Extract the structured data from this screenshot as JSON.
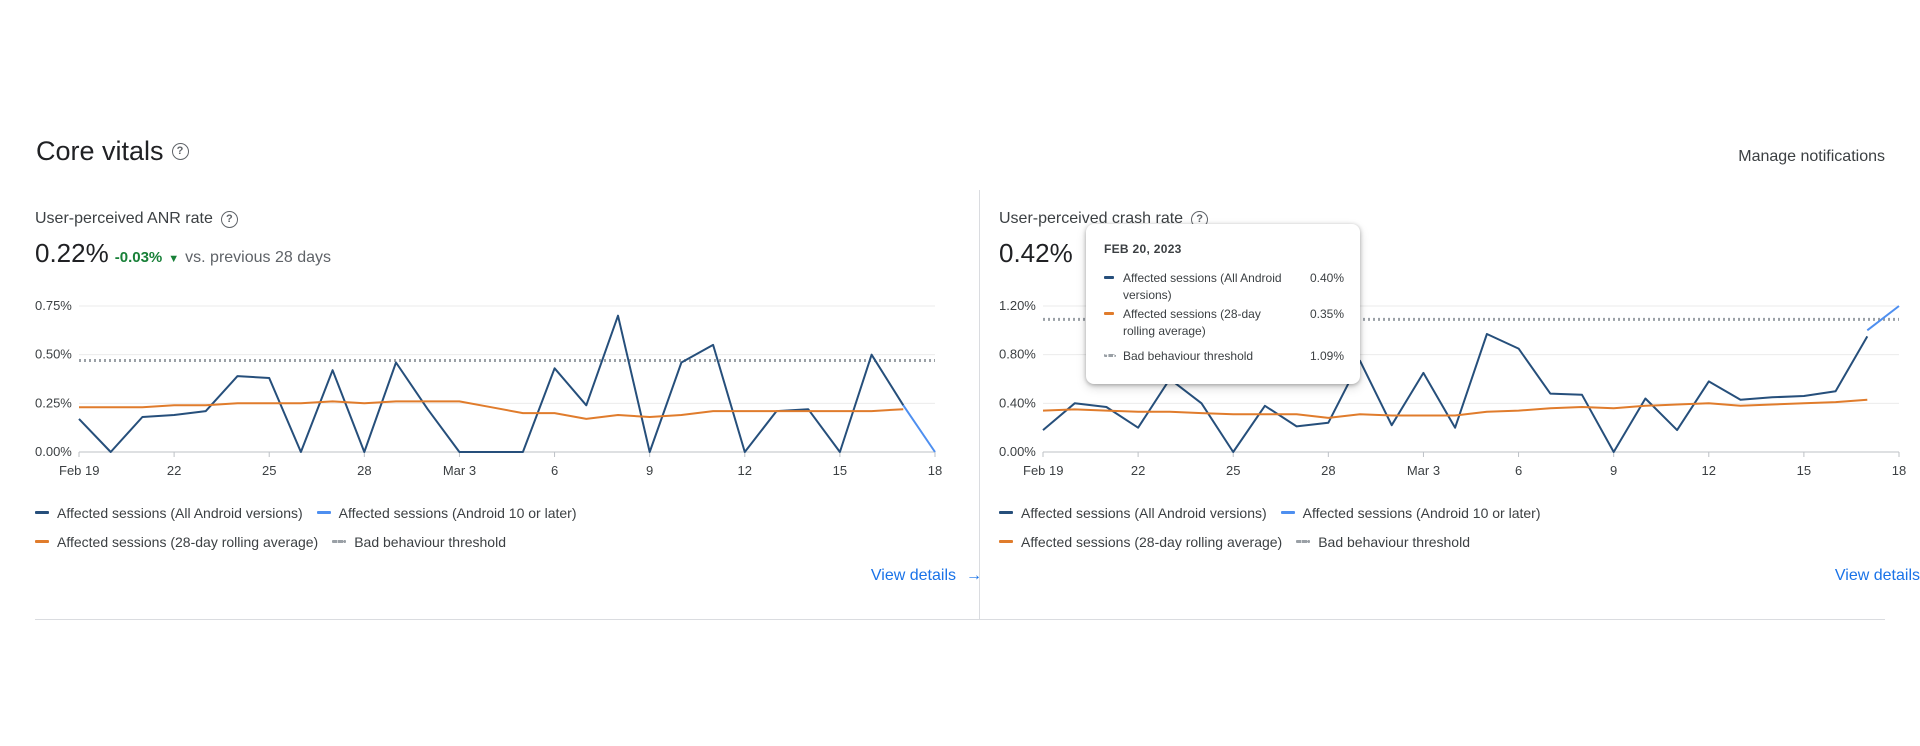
{
  "header": {
    "title": "Core vitals",
    "help_icon": "?",
    "manage": "Manage notifications"
  },
  "colors": {
    "all_android": "#264f7b",
    "android10": "#4e8ff0",
    "rolling": "#e07c2c",
    "threshold": "#9aa0a6",
    "positive_delta": "#188038",
    "link": "#1a73e8"
  },
  "panels": [
    {
      "title": "User-perceived ANR rate",
      "value": "0.22%",
      "delta": "-0.03%",
      "compare": "vs. previous 28 days",
      "view_details": "View details",
      "view_details_arrow": "→"
    },
    {
      "title": "User-perceived crash rate",
      "value": "0.42%",
      "view_details": "View details",
      "view_details_arrow": "→"
    }
  ],
  "legend": {
    "all_android": "Affected sessions (All Android versions)",
    "android10": "Affected sessions (Android 10 or later)",
    "rolling": "Affected sessions (28-day rolling average)",
    "threshold": "Bad behaviour threshold"
  },
  "tooltip": {
    "date": "FEB 20, 2023",
    "rows": [
      {
        "label": "Affected sessions (All Android versions)",
        "value": "0.40%"
      },
      {
        "label": "Affected sessions (28-day rolling average)",
        "value": "0.35%"
      },
      {
        "label": "Bad behaviour threshold",
        "value": "1.09%"
      }
    ]
  },
  "chart_data": [
    {
      "type": "line",
      "title": "User-perceived ANR rate",
      "x_tick_labels": [
        "Feb 19",
        "22",
        "25",
        "28",
        "Mar 3",
        "6",
        "9",
        "12",
        "15",
        "18"
      ],
      "x_tick_index": [
        0,
        3,
        6,
        9,
        12,
        15,
        18,
        21,
        24,
        27
      ],
      "y_ticks": [
        0,
        0.25,
        0.5,
        0.75
      ],
      "y_tick_labels": [
        "0.00%",
        "0.25%",
        "0.50%",
        "0.75%"
      ],
      "ylim": [
        0,
        0.75
      ],
      "threshold": 0.47,
      "series": [
        {
          "name": "Affected sessions (All Android versions)",
          "key": "all_android",
          "values": [
            0.17,
            0.0,
            0.18,
            0.19,
            0.21,
            0.39,
            0.38,
            0.0,
            0.42,
            0.0,
            0.46,
            0.22,
            0.0,
            0.0,
            0.0,
            0.43,
            0.24,
            0.7,
            0.0,
            0.46,
            0.55,
            0.0,
            0.21,
            0.22,
            0.0,
            0.5,
            0.24
          ]
        },
        {
          "name": "Affected sessions (Android 10 or later)",
          "key": "android10",
          "values": [
            null,
            null,
            null,
            null,
            null,
            null,
            null,
            null,
            null,
            null,
            null,
            null,
            null,
            null,
            null,
            null,
            null,
            null,
            null,
            null,
            null,
            null,
            null,
            null,
            null,
            null,
            0.24,
            0.0
          ]
        },
        {
          "name": "Affected sessions (28-day rolling average)",
          "key": "rolling",
          "values": [
            0.23,
            0.23,
            0.23,
            0.24,
            0.24,
            0.25,
            0.25,
            0.25,
            0.26,
            0.25,
            0.26,
            0.26,
            0.26,
            0.23,
            0.2,
            0.2,
            0.17,
            0.19,
            0.18,
            0.19,
            0.21,
            0.21,
            0.21,
            0.21,
            0.21,
            0.21,
            0.22
          ]
        }
      ]
    },
    {
      "type": "line",
      "title": "User-perceived crash rate",
      "x_tick_labels": [
        "Feb 19",
        "22",
        "25",
        "28",
        "Mar 3",
        "6",
        "9",
        "12",
        "15",
        "18"
      ],
      "x_tick_index": [
        0,
        3,
        6,
        9,
        12,
        15,
        18,
        21,
        24,
        27
      ],
      "y_ticks": [
        0,
        0.4,
        0.8,
        1.2
      ],
      "y_tick_labels": [
        "0.00%",
        "0.40%",
        "0.80%",
        "1.20%"
      ],
      "ylim": [
        0,
        1.2
      ],
      "threshold": 1.09,
      "series": [
        {
          "name": "Affected sessions (All Android versions)",
          "key": "all_android",
          "values": [
            0.18,
            0.4,
            0.37,
            0.2,
            0.6,
            0.4,
            0.0,
            0.38,
            0.21,
            0.24,
            0.75,
            0.22,
            0.65,
            0.2,
            0.97,
            0.85,
            0.48,
            0.47,
            0.0,
            0.44,
            0.18,
            0.58,
            0.43,
            0.45,
            0.46,
            0.5,
            0.95
          ]
        },
        {
          "name": "Affected sessions (Android 10 or later)",
          "key": "android10",
          "values": [
            null,
            null,
            null,
            null,
            null,
            null,
            null,
            null,
            null,
            null,
            null,
            null,
            null,
            null,
            null,
            null,
            null,
            null,
            null,
            null,
            null,
            null,
            null,
            null,
            null,
            null,
            1.0,
            1.2
          ]
        },
        {
          "name": "Affected sessions (28-day rolling average)",
          "key": "rolling",
          "values": [
            0.34,
            0.35,
            0.34,
            0.33,
            0.33,
            0.32,
            0.31,
            0.31,
            0.31,
            0.28,
            0.31,
            0.3,
            0.3,
            0.3,
            0.33,
            0.34,
            0.36,
            0.37,
            0.36,
            0.38,
            0.39,
            0.4,
            0.38,
            0.39,
            0.4,
            0.41,
            0.43
          ]
        }
      ]
    }
  ]
}
